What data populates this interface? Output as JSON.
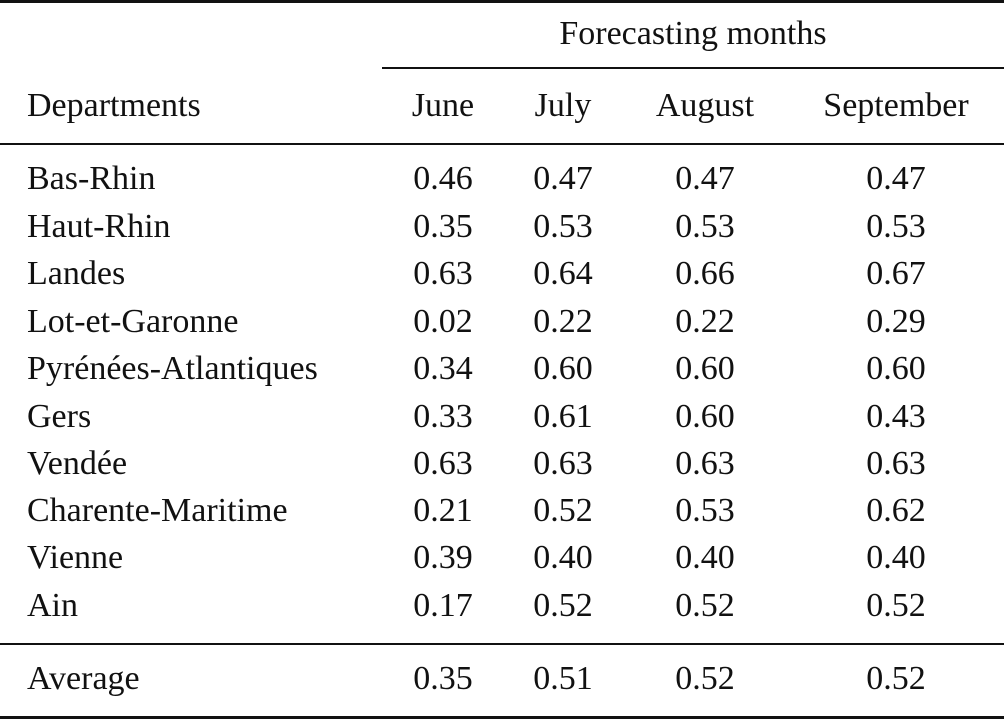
{
  "table": {
    "spanner_label": "Forecasting months",
    "columns": [
      "Departments",
      "June",
      "July",
      "August",
      "September"
    ],
    "rows": [
      {
        "department": "Bas-Rhin",
        "values": [
          "0.46",
          "0.47",
          "0.47",
          "0.47"
        ]
      },
      {
        "department": "Haut-Rhin",
        "values": [
          "0.35",
          "0.53",
          "0.53",
          "0.53"
        ]
      },
      {
        "department": "Landes",
        "values": [
          "0.63",
          "0.64",
          "0.66",
          "0.67"
        ]
      },
      {
        "department": "Lot-et-Garonne",
        "values": [
          "0.02",
          "0.22",
          "0.22",
          "0.29"
        ]
      },
      {
        "department": "Pyrénées-Atlantiques",
        "values": [
          "0.34",
          "0.60",
          "0.60",
          "0.60"
        ]
      },
      {
        "department": "Gers",
        "values": [
          "0.33",
          "0.61",
          "0.60",
          "0.43"
        ]
      },
      {
        "department": "Vendée",
        "values": [
          "0.63",
          "0.63",
          "0.63",
          "0.63"
        ]
      },
      {
        "department": "Charente-Maritime",
        "values": [
          "0.21",
          "0.52",
          "0.53",
          "0.62"
        ]
      },
      {
        "department": "Vienne",
        "values": [
          "0.39",
          "0.40",
          "0.40",
          "0.40"
        ]
      },
      {
        "department": "Ain",
        "values": [
          "0.17",
          "0.52",
          "0.52",
          "0.52"
        ]
      }
    ],
    "average": {
      "label": "Average",
      "values": [
        "0.35",
        "0.51",
        "0.52",
        "0.52"
      ]
    }
  }
}
